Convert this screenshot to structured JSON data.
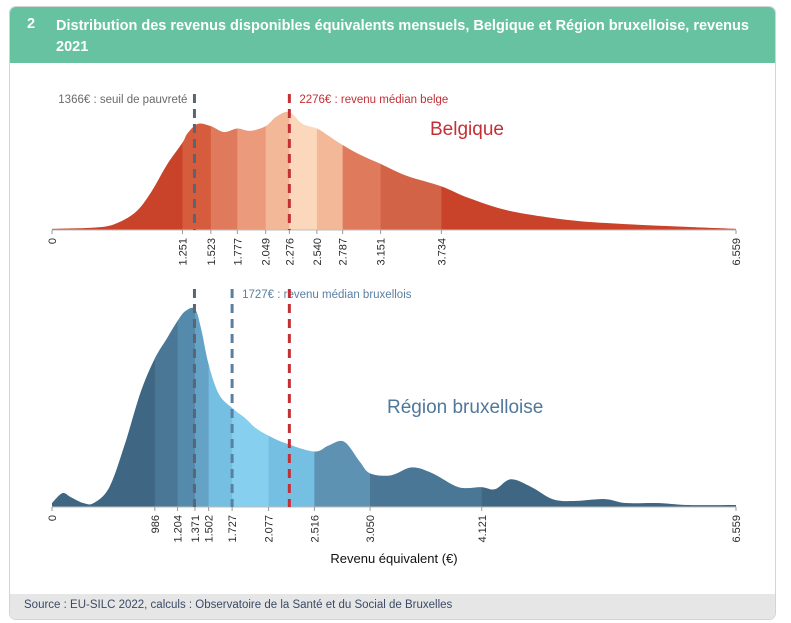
{
  "figure": {
    "number": "2",
    "title": "Distribution des revenus disponibles équivalents mensuels, Belgique et Région bruxelloise, revenus 2021",
    "source": "Source : EU-SILC 2022, calculs : Observatoire de la Santé et du Social de Bruxelles"
  },
  "colors": {
    "header": "#67c2a1",
    "belgium_series": "#c9432a",
    "brussels_series": "#3f6682",
    "poverty_line": "#5b6470",
    "median_line": "#c42f35",
    "brussels_median_line": "#5b7fa3"
  },
  "chart_data": [
    {
      "type": "area",
      "title": "Belgique",
      "xlabel": "Revenu équivalent (€)",
      "xlim": [
        0,
        6559
      ],
      "x": [
        0,
        400,
        600,
        800,
        950,
        1100,
        1251,
        1300,
        1400,
        1523,
        1650,
        1777,
        1900,
        2049,
        2150,
        2276,
        2400,
        2540,
        2650,
        2787,
        2950,
        3151,
        3400,
        3734,
        4000,
        4400,
        5000,
        5500,
        6000,
        6559
      ],
      "y": [
        0.01,
        0.02,
        0.05,
        0.15,
        0.32,
        0.55,
        0.74,
        0.82,
        0.9,
        0.88,
        0.83,
        0.86,
        0.84,
        0.88,
        0.96,
        1.0,
        0.9,
        0.86,
        0.8,
        0.72,
        0.64,
        0.56,
        0.46,
        0.37,
        0.27,
        0.16,
        0.08,
        0.05,
        0.03,
        0.01
      ],
      "bands": [
        0,
        1251,
        1523,
        1777,
        2049,
        2276,
        2540,
        2787,
        3151,
        3734,
        6559
      ],
      "band_colors": [
        "#c9432a",
        "#d65c3e",
        "#df7a5c",
        "#eb9a7b",
        "#f2b898",
        "#fbd8bb",
        "#f2b898",
        "#df7a5c",
        "#d26347",
        "#c9432a"
      ],
      "tick_labels": [
        "0",
        "1.251",
        "1.523",
        "1.777",
        "2.049",
        "2.276",
        "2.540",
        "2.787",
        "3.151",
        "3.734",
        "6.559"
      ],
      "tick_values": [
        0,
        1251,
        1523,
        1777,
        2049,
        2276,
        2540,
        2787,
        3151,
        3734,
        6559
      ],
      "reference_lines": [
        {
          "value": 1366,
          "label": "1366€ : seuil de pauvreté",
          "kind": "poverty"
        },
        {
          "value": 2276,
          "label": "2276€ : revenu médian belge",
          "kind": "median"
        }
      ]
    },
    {
      "type": "area",
      "title": "Région bruxelloise",
      "xlabel": "Revenu équivalent (€)",
      "xlim": [
        0,
        6559
      ],
      "x": [
        0,
        100,
        180,
        300,
        400,
        550,
        700,
        850,
        986,
        1100,
        1204,
        1280,
        1371,
        1430,
        1502,
        1600,
        1727,
        1850,
        1950,
        2077,
        2250,
        2516,
        2650,
        2800,
        2950,
        3050,
        3250,
        3450,
        3650,
        3900,
        4121,
        4250,
        4400,
        4600,
        4800,
        5000,
        5300,
        5500,
        5800,
        6100,
        6559
      ],
      "y": [
        0.02,
        0.07,
        0.05,
        0.02,
        0.02,
        0.1,
        0.32,
        0.58,
        0.75,
        0.85,
        0.94,
        0.99,
        1.0,
        0.9,
        0.72,
        0.57,
        0.5,
        0.45,
        0.4,
        0.36,
        0.32,
        0.28,
        0.31,
        0.33,
        0.23,
        0.17,
        0.16,
        0.2,
        0.17,
        0.1,
        0.1,
        0.09,
        0.14,
        0.1,
        0.04,
        0.03,
        0.04,
        0.02,
        0.02,
        0.01,
        0.01
      ],
      "bands": [
        0,
        986,
        1204,
        1371,
        1502,
        1727,
        2077,
        2516,
        3050,
        4121,
        6559
      ],
      "band_colors": [
        "#3f6682",
        "#4a7795",
        "#548aab",
        "#64a3c6",
        "#75bfe2",
        "#86cfee",
        "#75bfe2",
        "#5e92b3",
        "#4a7795",
        "#3f6682"
      ],
      "tick_labels": [
        "0",
        "986",
        "1.204",
        "1.371",
        "1.502",
        "1.727",
        "2.077",
        "2.516",
        "3.050",
        "4.121",
        "6.559"
      ],
      "tick_values": [
        0,
        986,
        1204,
        1371,
        1502,
        1727,
        2077,
        2516,
        3050,
        4121,
        6559
      ],
      "reference_lines": [
        {
          "value": 1366,
          "label": "",
          "kind": "poverty"
        },
        {
          "value": 1727,
          "label": "1727€ : revenu médian bruxellois",
          "kind": "brussels_median"
        },
        {
          "value": 2276,
          "label": "",
          "kind": "median"
        }
      ]
    }
  ]
}
